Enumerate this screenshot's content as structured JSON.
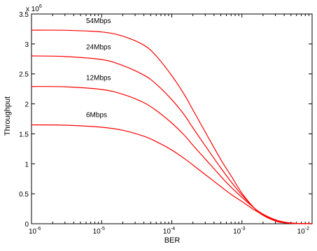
{
  "chart_data": {
    "type": "line",
    "title": "",
    "xlabel": "BER",
    "ylabel": "Throughput",
    "xscale": "log",
    "xlim": [
      1e-06,
      0.01
    ],
    "ylim": [
      0,
      3500000
    ],
    "y_multiplier_label": "x 10",
    "y_multiplier_exponent": "6",
    "x_ticks": [
      {
        "value": 1e-06,
        "base": "10",
        "exp": "-6"
      },
      {
        "value": 1e-05,
        "base": "10",
        "exp": "-5"
      },
      {
        "value": 0.0001,
        "base": "10",
        "exp": "-4"
      },
      {
        "value": 0.001,
        "base": "10",
        "exp": "-3"
      },
      {
        "value": 0.01,
        "base": "10",
        "exp": "-2"
      }
    ],
    "y_ticks": [
      {
        "value": 0,
        "label": "0"
      },
      {
        "value": 500000,
        "label": "0.5"
      },
      {
        "value": 1000000,
        "label": "1"
      },
      {
        "value": 1500000,
        "label": "1.5"
      },
      {
        "value": 2000000,
        "label": "2"
      },
      {
        "value": 2500000,
        "label": "2.5"
      },
      {
        "value": 3000000,
        "label": "3"
      },
      {
        "value": 3500000,
        "label": "3.5"
      }
    ],
    "grid": false,
    "line_color": "#ff0000",
    "series": [
      {
        "name": "54Mbps",
        "x": [
          1e-06,
          3e-06,
          1e-05,
          2e-05,
          4e-05,
          6e-05,
          0.0001,
          0.00015,
          0.0002,
          0.0003,
          0.0005,
          0.0007,
          0.001,
          0.0015,
          0.002,
          0.003,
          0.004,
          0.006,
          0.01
        ],
        "y": [
          3230000,
          3228000,
          3200000,
          3130000,
          2980000,
          2800000,
          2470000,
          2160000,
          1900000,
          1530000,
          1070000,
          800000,
          510000,
          260000,
          140000,
          45000,
          15000,
          3000,
          0
        ]
      },
      {
        "name": "24Mbps",
        "x": [
          1e-06,
          3e-06,
          1e-05,
          2e-05,
          4e-05,
          6e-05,
          0.0001,
          0.00015,
          0.0002,
          0.0003,
          0.0005,
          0.0007,
          0.001,
          0.0015,
          0.002,
          0.003,
          0.004,
          0.006,
          0.01
        ],
        "y": [
          2800000,
          2790000,
          2740000,
          2640000,
          2480000,
          2330000,
          2070000,
          1820000,
          1600000,
          1300000,
          930000,
          700000,
          480000,
          260000,
          150000,
          55000,
          20000,
          4000,
          0
        ]
      },
      {
        "name": "12Mbps",
        "x": [
          1e-06,
          3e-06,
          1e-05,
          2e-05,
          4e-05,
          6e-05,
          0.0001,
          0.00015,
          0.0002,
          0.0003,
          0.0005,
          0.0007,
          0.001,
          0.0015,
          0.002,
          0.003,
          0.004,
          0.006,
          0.01
        ],
        "y": [
          2290000,
          2285000,
          2240000,
          2160000,
          2020000,
          1890000,
          1680000,
          1480000,
          1310000,
          1080000,
          790000,
          610000,
          440000,
          260000,
          160000,
          65000,
          25000,
          5000,
          0
        ]
      },
      {
        "name": "6Mbps",
        "x": [
          1e-06,
          3e-06,
          1e-05,
          2e-05,
          4e-05,
          6e-05,
          0.0001,
          0.00015,
          0.0002,
          0.0003,
          0.0005,
          0.0007,
          0.001,
          0.0015,
          0.002,
          0.003,
          0.004,
          0.006,
          0.01
        ],
        "y": [
          1650000,
          1645000,
          1610000,
          1560000,
          1460000,
          1370000,
          1230000,
          1090000,
          980000,
          820000,
          620000,
          490000,
          370000,
          230000,
          150000,
          65000,
          28000,
          6000,
          0
        ]
      }
    ],
    "series_labels": [
      {
        "series": 0,
        "text": "54Mbps",
        "x": 6e-06,
        "y": 3350000
      },
      {
        "series": 1,
        "text": "24Mbps",
        "x": 6e-06,
        "y": 2910000
      },
      {
        "series": 2,
        "text": "12Mbps",
        "x": 6e-06,
        "y": 2400000
      },
      {
        "series": 3,
        "text": "6Mbps",
        "x": 6e-06,
        "y": 1780000
      }
    ]
  }
}
